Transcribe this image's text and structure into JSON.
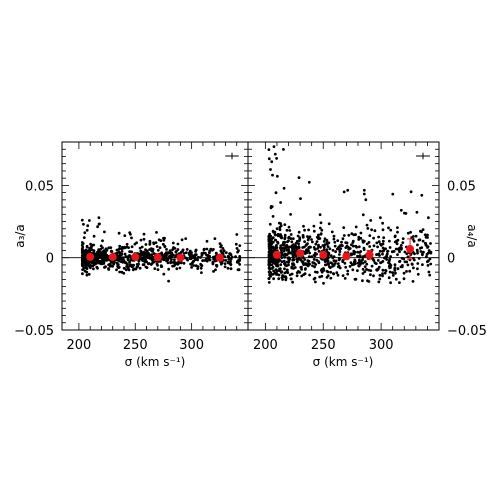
{
  "chart_data": [
    {
      "type": "scatter",
      "panel": "left",
      "xlabel": "σ  (km s⁻¹)",
      "ylabel": "a₃/a",
      "xlim": [
        185,
        350
      ],
      "ylim": [
        -0.05,
        0.08
      ],
      "xticks": [
        200,
        250,
        300
      ],
      "yticks": [
        -0.05,
        0,
        0.05
      ],
      "ytick_labels": [
        "−0.05",
        "0",
        "0.05"
      ],
      "scatter_color": "#000000",
      "binned": {
        "color": "#e8161b",
        "x": [
          210,
          230,
          250,
          270,
          290,
          325
        ],
        "y": [
          0.0005,
          0.0005,
          0.0005,
          0.0003,
          0.0,
          0.0
        ],
        "err": [
          0.0008,
          0.0008,
          0.0008,
          0.001,
          0.0015,
          0.002
        ]
      },
      "typical_error": {
        "xerr": 4,
        "yerr": 0.0015
      },
      "scatter_spread": {
        "sigma": 0.004,
        "outlier_max": 0.03,
        "outlier_min": -0.018
      }
    },
    {
      "type": "scatter",
      "panel": "right",
      "xlabel": "σ  (km s⁻¹)",
      "ylabel": "a₄/a",
      "xlim": [
        185,
        350
      ],
      "ylim": [
        -0.05,
        0.08
      ],
      "xticks": [
        200,
        250,
        300
      ],
      "yticks": [
        -0.05,
        0,
        0.05
      ],
      "ytick_labels": [
        "−0.05",
        "0",
        "0.05"
      ],
      "scatter_color": "#000000",
      "binned": {
        "color": "#e8161b",
        "x": [
          210,
          230,
          250,
          270,
          290,
          325
        ],
        "y": [
          0.002,
          0.003,
          0.002,
          0.001,
          0.002,
          0.006
        ],
        "err": [
          0.002,
          0.002,
          0.002,
          0.002,
          0.003,
          0.007
        ]
      },
      "typical_error": {
        "xerr": 4,
        "yerr": 0.0015
      },
      "scatter_spread": {
        "sigma": 0.01,
        "outlier_max": 0.075,
        "outlier_min": -0.02
      }
    }
  ]
}
